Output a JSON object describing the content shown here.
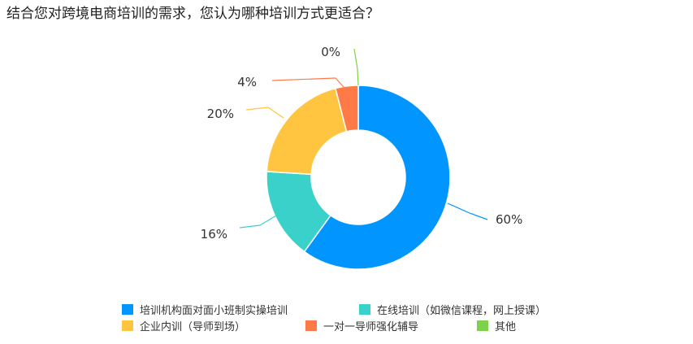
{
  "question": "结合您对跨境电商培训的需求，您认为哪种培训方式更适合？",
  "chart_data": {
    "type": "donut",
    "slices": [
      {
        "label": "培训机构面对面小班制实操培训",
        "value": 60,
        "text": "60%",
        "color": "#0095FF"
      },
      {
        "label": "在线培训（如微信课程，网上授课）",
        "value": 16,
        "text": "16%",
        "color": "#3BD1CB"
      },
      {
        "label": "企业内训（导师到场）",
        "value": 20,
        "text": "20%",
        "color": "#FFC540"
      },
      {
        "label": "一对一导师强化辅导",
        "value": 4,
        "text": "4%",
        "color": "#FF7A47"
      },
      {
        "label": "其他",
        "value": 0,
        "text": "0%",
        "color": "#7ED14A"
      }
    ],
    "legend_position": "bottom"
  }
}
